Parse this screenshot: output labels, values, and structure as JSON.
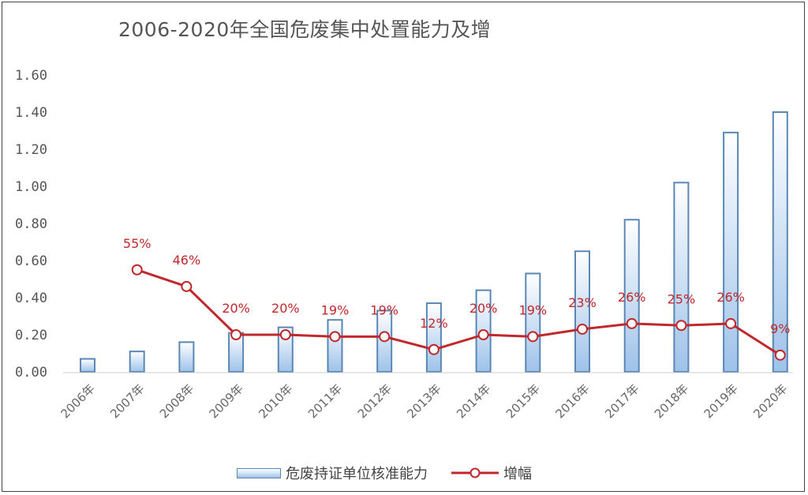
{
  "chart_data": {
    "type": "bar",
    "title": "2006-2020年全国危废集中处置能力及增",
    "categories": [
      "2006年",
      "2007年",
      "2008年",
      "2009年",
      "2010年",
      "2011年",
      "2012年",
      "2013年",
      "2014年",
      "2015年",
      "2016年",
      "2017年",
      "2018年",
      "2019年",
      "2020年"
    ],
    "series": [
      {
        "name": "危废持证单位核准能力",
        "type": "bar",
        "values": [
          0.07,
          0.11,
          0.16,
          0.21,
          0.24,
          0.28,
          0.33,
          0.37,
          0.44,
          0.53,
          0.65,
          0.82,
          1.02,
          1.29,
          1.4
        ],
        "color": "#5b87b5"
      },
      {
        "name": "增幅",
        "type": "line",
        "values": [
          null,
          0.55,
          0.46,
          0.2,
          0.2,
          0.19,
          0.19,
          0.12,
          0.2,
          0.19,
          0.23,
          0.26,
          0.25,
          0.26,
          0.09
        ],
        "labels": [
          "",
          "55%",
          "46%",
          "20%",
          "20%",
          "19%",
          "19%",
          "12%",
          "20%",
          "19%",
          "23%",
          "26%",
          "25%",
          "26%",
          "9%"
        ],
        "color": "#c0282b"
      }
    ],
    "yticks": [
      "0.00",
      "0.20",
      "0.40",
      "0.60",
      "0.80",
      "1.00",
      "1.20",
      "1.40",
      "1.60"
    ],
    "ylim": [
      0,
      1.6
    ],
    "legend_position": "bottom",
    "grid": false
  },
  "colors": {
    "bar_edge": "#5b87b5",
    "bar_light": "#ffffff",
    "bar_dark": "#9ec2e9",
    "line": "#c0282b",
    "label": "#c0282b",
    "axis_text": "#555555"
  }
}
